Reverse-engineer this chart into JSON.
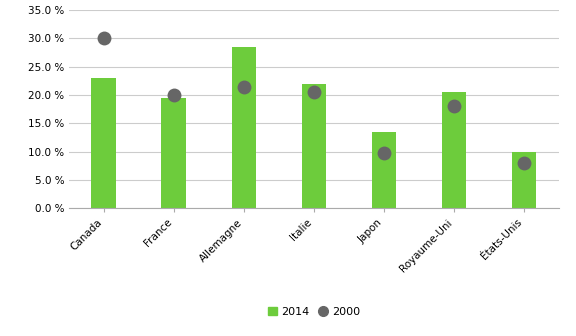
{
  "categories": [
    "Canada",
    "France",
    "Allemagne",
    "Italie",
    "Japon",
    "Royaume-Uni",
    "États-Unis"
  ],
  "values_2014": [
    0.23,
    0.195,
    0.285,
    0.22,
    0.135,
    0.205,
    0.1
  ],
  "values_2000": [
    0.3,
    0.2,
    0.215,
    0.205,
    0.098,
    0.18,
    0.08
  ],
  "bar_color": "#6dcc3c",
  "dot_color": "#666666",
  "ylim": [
    0,
    0.35
  ],
  "yticks": [
    0.0,
    0.05,
    0.1,
    0.15,
    0.2,
    0.25,
    0.3,
    0.35
  ],
  "legend_2014": "2014",
  "legend_2000": "2000",
  "background_color": "#ffffff",
  "grid_color": "#cccccc",
  "bar_width": 0.35
}
